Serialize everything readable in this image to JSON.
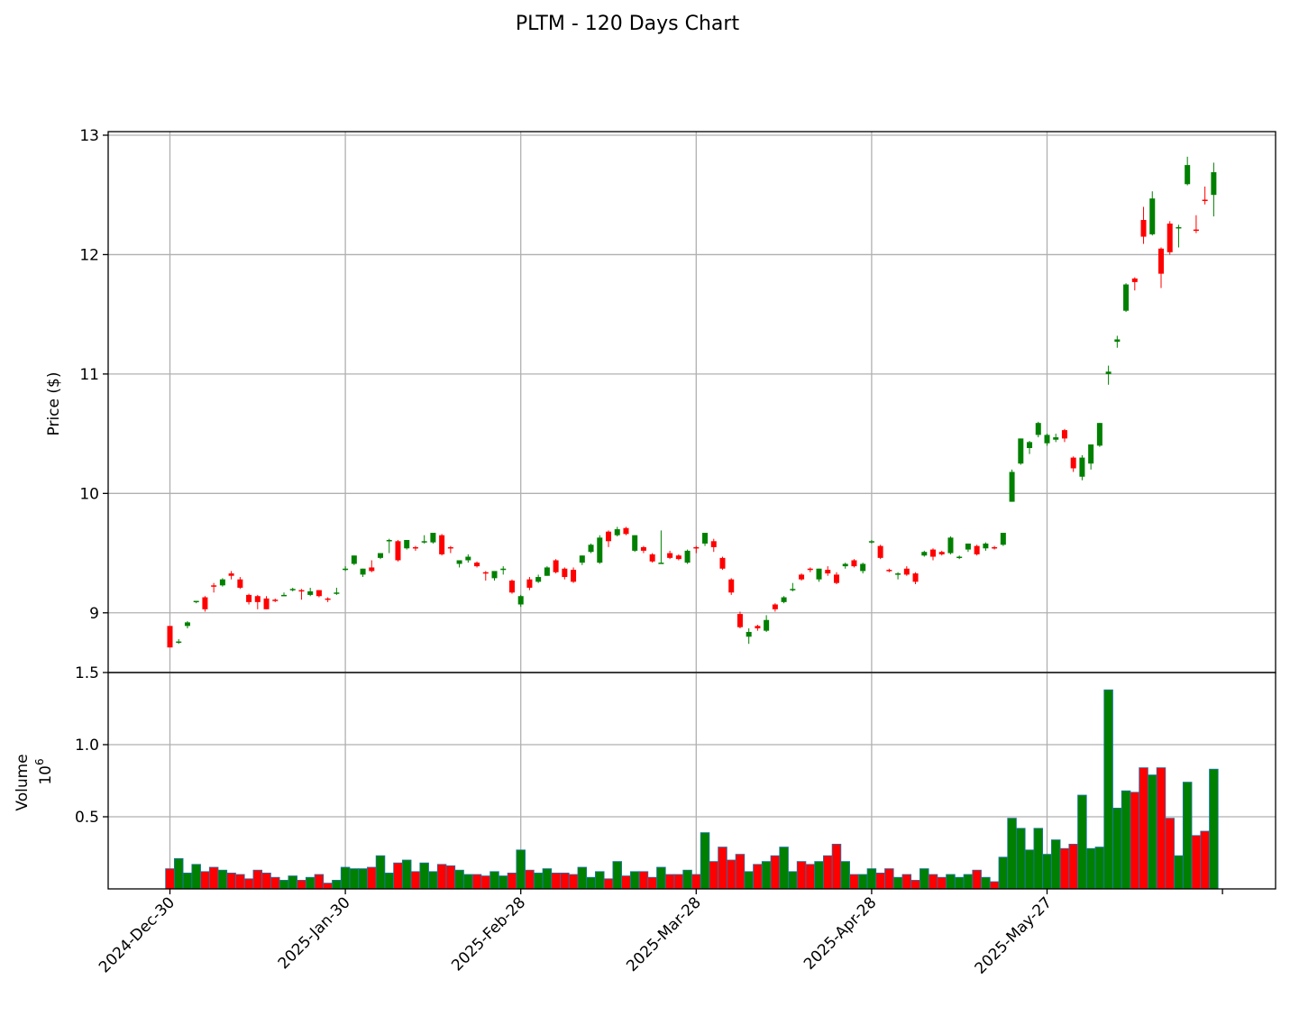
{
  "title": "PLTM - 120 Days Chart",
  "colors": {
    "up": "#008000",
    "down": "#ff0000",
    "vol_edge": "#1f77b4",
    "grid": "#b0b0b0"
  },
  "chart_data": [
    {
      "type": "candlestick",
      "ylabel": "Price ($)",
      "ylim": [
        8.5,
        13.03
      ],
      "yticks": [
        "9",
        "10",
        "11",
        "12",
        "13"
      ],
      "grid": true,
      "x_dates": [
        "2024-Dec-30",
        "2025-Jan-30",
        "2025-Feb-28",
        "2025-Mar-28",
        "2025-Apr-28",
        "2025-May-27"
      ],
      "x_date_index": [
        0,
        20,
        40,
        60,
        80,
        100
      ],
      "ohlc": [
        [
          8.89,
          8.89,
          8.71,
          8.71
        ],
        [
          8.75,
          8.78,
          8.74,
          8.76
        ],
        [
          8.89,
          8.93,
          8.87,
          8.92
        ],
        [
          9.09,
          9.1,
          9.08,
          9.1
        ],
        [
          9.13,
          9.14,
          9.01,
          9.03
        ],
        [
          9.23,
          9.25,
          9.17,
          9.22
        ],
        [
          9.23,
          9.29,
          9.22,
          9.28
        ],
        [
          9.33,
          9.35,
          9.28,
          9.31
        ],
        [
          9.28,
          9.3,
          9.2,
          9.21
        ],
        [
          9.15,
          9.16,
          9.07,
          9.09
        ],
        [
          9.14,
          9.15,
          9.03,
          9.09
        ],
        [
          9.12,
          9.14,
          9.03,
          9.03
        ],
        [
          9.11,
          9.12,
          9.09,
          9.1
        ],
        [
          9.15,
          9.17,
          9.14,
          9.15
        ],
        [
          9.19,
          9.21,
          9.18,
          9.2
        ],
        [
          9.19,
          9.2,
          9.11,
          9.18
        ],
        [
          9.15,
          9.21,
          9.14,
          9.18
        ],
        [
          9.19,
          9.19,
          9.13,
          9.14
        ],
        [
          9.12,
          9.13,
          9.09,
          9.11
        ],
        [
          9.17,
          9.21,
          9.15,
          9.17
        ],
        [
          9.36,
          9.39,
          9.35,
          9.37
        ],
        [
          9.41,
          9.48,
          9.4,
          9.48
        ],
        [
          9.32,
          9.37,
          9.3,
          9.37
        ],
        [
          9.38,
          9.44,
          9.34,
          9.35
        ],
        [
          9.46,
          9.5,
          9.45,
          9.5
        ],
        [
          9.61,
          9.62,
          9.5,
          9.61
        ],
        [
          9.6,
          9.61,
          9.43,
          9.44
        ],
        [
          9.54,
          9.61,
          9.53,
          9.61
        ],
        [
          9.55,
          9.56,
          9.52,
          9.54
        ],
        [
          9.59,
          9.65,
          9.58,
          9.6
        ],
        [
          9.59,
          9.67,
          9.58,
          9.67
        ],
        [
          9.65,
          9.66,
          9.48,
          9.49
        ],
        [
          9.55,
          9.56,
          9.5,
          9.54
        ],
        [
          9.41,
          9.44,
          9.38,
          9.44
        ],
        [
          9.44,
          9.49,
          9.42,
          9.47
        ],
        [
          9.42,
          9.43,
          9.38,
          9.39
        ],
        [
          9.34,
          9.35,
          9.27,
          9.33
        ],
        [
          9.29,
          9.33,
          9.27,
          9.35
        ],
        [
          9.36,
          9.39,
          9.32,
          9.37
        ],
        [
          9.27,
          9.28,
          9.16,
          9.17
        ],
        [
          9.07,
          9.15,
          9.05,
          9.14
        ],
        [
          9.28,
          9.3,
          9.19,
          9.21
        ],
        [
          9.26,
          9.32,
          9.25,
          9.3
        ],
        [
          9.31,
          9.39,
          9.31,
          9.38
        ],
        [
          9.44,
          9.45,
          9.33,
          9.34
        ],
        [
          9.37,
          9.38,
          9.28,
          9.3
        ],
        [
          9.36,
          9.38,
          9.25,
          9.26
        ],
        [
          9.42,
          9.48,
          9.4,
          9.48
        ],
        [
          9.51,
          9.58,
          9.5,
          9.57
        ],
        [
          9.42,
          9.65,
          9.41,
          9.63
        ],
        [
          9.68,
          9.69,
          9.55,
          9.6
        ],
        [
          9.65,
          9.72,
          9.64,
          9.7
        ],
        [
          9.71,
          9.72,
          9.65,
          9.66
        ],
        [
          9.52,
          9.65,
          9.51,
          9.65
        ],
        [
          9.55,
          9.56,
          9.5,
          9.52
        ],
        [
          9.49,
          9.5,
          9.42,
          9.43
        ],
        [
          9.42,
          9.69,
          9.41,
          9.42
        ],
        [
          9.5,
          9.52,
          9.45,
          9.46
        ],
        [
          9.48,
          9.49,
          9.44,
          9.45
        ],
        [
          9.42,
          9.53,
          9.41,
          9.52
        ],
        [
          9.55,
          9.56,
          9.5,
          9.54
        ],
        [
          9.58,
          9.67,
          9.56,
          9.67
        ],
        [
          9.6,
          9.62,
          9.51,
          9.55
        ],
        [
          9.46,
          9.47,
          9.36,
          9.37
        ],
        [
          9.28,
          9.29,
          9.15,
          9.17
        ],
        [
          8.99,
          9.01,
          8.87,
          8.88
        ],
        [
          8.8,
          8.87,
          8.74,
          8.84
        ],
        [
          8.89,
          8.9,
          8.85,
          8.87
        ],
        [
          8.85,
          8.98,
          8.84,
          8.94
        ],
        [
          9.07,
          9.08,
          9.01,
          9.03
        ],
        [
          9.09,
          9.14,
          9.08,
          9.13
        ],
        [
          9.19,
          9.25,
          9.18,
          9.2
        ],
        [
          9.32,
          9.33,
          9.27,
          9.28
        ],
        [
          9.37,
          9.38,
          9.34,
          9.36
        ],
        [
          9.28,
          9.37,
          9.26,
          9.37
        ],
        [
          9.36,
          9.39,
          9.31,
          9.33
        ],
        [
          9.32,
          9.34,
          9.24,
          9.25
        ],
        [
          9.39,
          9.42,
          9.37,
          9.41
        ],
        [
          9.44,
          9.45,
          9.38,
          9.39
        ],
        [
          9.35,
          9.42,
          9.33,
          9.41
        ],
        [
          9.59,
          9.61,
          9.58,
          9.6
        ],
        [
          9.56,
          9.57,
          9.45,
          9.46
        ],
        [
          9.36,
          9.37,
          9.34,
          9.35
        ],
        [
          9.32,
          9.34,
          9.28,
          9.33
        ],
        [
          9.37,
          9.39,
          9.31,
          9.32
        ],
        [
          9.33,
          9.34,
          9.24,
          9.26
        ],
        [
          9.48,
          9.52,
          9.47,
          9.51
        ],
        [
          9.53,
          9.54,
          9.44,
          9.47
        ],
        [
          9.51,
          9.52,
          9.48,
          9.49
        ],
        [
          9.5,
          9.64,
          9.49,
          9.63
        ],
        [
          9.46,
          9.48,
          9.45,
          9.47
        ],
        [
          9.53,
          9.58,
          9.51,
          9.58
        ],
        [
          9.56,
          9.57,
          9.48,
          9.49
        ],
        [
          9.54,
          9.59,
          9.52,
          9.58
        ],
        [
          9.55,
          9.56,
          9.53,
          9.54
        ],
        [
          9.57,
          9.67,
          9.56,
          9.67
        ],
        [
          9.93,
          10.2,
          9.93,
          10.18
        ],
        [
          10.25,
          10.46,
          10.24,
          10.46
        ],
        [
          10.38,
          10.44,
          10.33,
          10.43
        ],
        [
          10.49,
          10.6,
          10.47,
          10.59
        ],
        [
          10.42,
          10.5,
          10.4,
          10.49
        ],
        [
          10.45,
          10.5,
          10.43,
          10.47
        ],
        [
          10.53,
          10.54,
          10.43,
          10.46
        ],
        [
          10.3,
          10.31,
          10.18,
          10.21
        ],
        [
          10.14,
          10.32,
          10.11,
          10.3
        ],
        [
          10.25,
          10.41,
          10.2,
          10.41
        ],
        [
          10.4,
          10.59,
          10.39,
          10.59
        ],
        [
          11.0,
          11.07,
          10.91,
          11.02
        ],
        [
          11.27,
          11.32,
          11.22,
          11.29
        ],
        [
          11.53,
          11.76,
          11.52,
          11.75
        ],
        [
          11.8,
          11.81,
          11.7,
          11.77
        ],
        [
          12.29,
          12.4,
          12.09,
          12.15
        ],
        [
          12.17,
          12.53,
          12.16,
          12.47
        ],
        [
          12.05,
          12.06,
          11.72,
          11.84
        ],
        [
          12.26,
          12.28,
          12.0,
          12.02
        ],
        [
          12.22,
          12.25,
          12.06,
          12.23
        ],
        [
          12.59,
          12.82,
          12.58,
          12.75
        ],
        [
          12.21,
          12.33,
          12.18,
          12.2
        ],
        [
          12.46,
          12.57,
          12.42,
          12.45
        ],
        [
          12.5,
          12.77,
          12.32,
          12.69
        ]
      ]
    },
    {
      "type": "bar",
      "ylabel": "Volume",
      "yscale_label": "10",
      "yscale_exp": "6",
      "ylim": [
        0.0,
        1.5
      ],
      "yticks": [
        "0.5",
        "1.0",
        "1.5"
      ],
      "grid": true,
      "volume_millions": [
        0.14,
        0.21,
        0.11,
        0.17,
        0.12,
        0.15,
        0.13,
        0.11,
        0.1,
        0.07,
        0.13,
        0.11,
        0.08,
        0.06,
        0.09,
        0.06,
        0.08,
        0.1,
        0.04,
        0.06,
        0.15,
        0.14,
        0.14,
        0.15,
        0.23,
        0.11,
        0.18,
        0.2,
        0.12,
        0.18,
        0.12,
        0.17,
        0.16,
        0.13,
        0.1,
        0.1,
        0.09,
        0.12,
        0.09,
        0.11,
        0.27,
        0.13,
        0.11,
        0.14,
        0.11,
        0.11,
        0.1,
        0.15,
        0.08,
        0.12,
        0.07,
        0.19,
        0.09,
        0.12,
        0.12,
        0.08,
        0.15,
        0.1,
        0.1,
        0.13,
        0.1,
        0.39,
        0.19,
        0.29,
        0.2,
        0.24,
        0.12,
        0.17,
        0.19,
        0.23,
        0.29,
        0.12,
        0.19,
        0.17,
        0.19,
        0.23,
        0.31,
        0.19,
        0.1,
        0.1,
        0.14,
        0.11,
        0.14,
        0.08,
        0.1,
        0.06,
        0.14,
        0.1,
        0.08,
        0.1,
        0.08,
        0.1,
        0.13,
        0.08,
        0.05,
        0.22,
        0.49,
        0.42,
        0.27,
        0.42,
        0.24,
        0.34,
        0.28,
        0.31,
        0.65,
        0.28,
        0.29,
        1.38,
        0.56,
        0.68,
        0.67,
        0.84,
        0.79,
        0.84,
        0.49,
        0.23,
        0.74,
        0.37,
        0.4,
        0.83
      ]
    }
  ]
}
